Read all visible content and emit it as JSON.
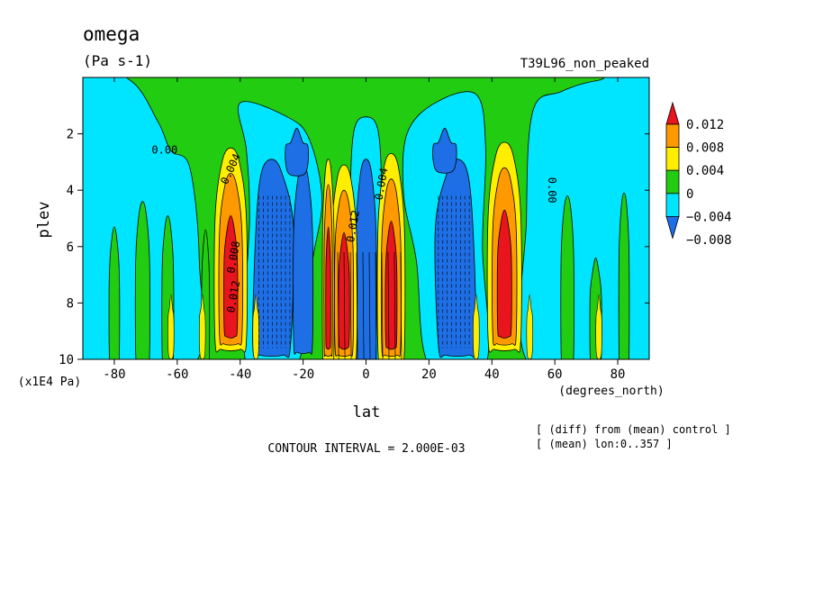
{
  "chart_data": {
    "type": "heatmap",
    "title": "omega",
    "units": "(Pa s-1)",
    "run_label": "T39L96_non_peaked",
    "xlabel": "lat",
    "x_units": "(degrees_north)",
    "ylabel": "plev",
    "y_units": "(x1E4 Pa)",
    "xlim": [
      -90,
      90
    ],
    "ylim": [
      10,
      0
    ],
    "x_ticks": [
      -80,
      -60,
      -40,
      -20,
      0,
      20,
      40,
      60,
      80
    ],
    "y_ticks": [
      2,
      4,
      6,
      8,
      10
    ],
    "contour_interval_text": "CONTOUR INTERVAL = 2.000E-03",
    "notes": [
      "[ (diff) from (mean) control ]",
      "[ (mean) lon:0..357 ]"
    ],
    "colorbar": {
      "levels": [
        -0.008,
        -0.004,
        0,
        0.004,
        0.008,
        0.012
      ],
      "labels": [
        "−0.008",
        "−0.004",
        "0",
        "0.004",
        "0.008",
        "0.012"
      ],
      "colors": [
        "#1e6fe6",
        "#00e5ff",
        "#22cc11",
        "#ffee00",
        "#ff9900",
        "#e8141e"
      ]
    },
    "contour_labels": [
      "0.00",
      "0.004",
      "0.008",
      "0.012",
      "0.012",
      "0.004",
      "0.00"
    ],
    "features": [
      {
        "lat": -43,
        "plev_top": 2.7,
        "plev_bottom": 9.6,
        "peak": 0.012,
        "sign": "positive"
      },
      {
        "lat": -30,
        "plev_top": 3.0,
        "plev_bottom": 9.8,
        "peak": -0.008,
        "sign": "negative"
      },
      {
        "lat": -7,
        "plev_top": 3.5,
        "plev_bottom": 9.9,
        "peak": 0.012,
        "sign": "positive"
      },
      {
        "lat": 0,
        "plev_top": 2.8,
        "plev_bottom": 10.0,
        "peak": -0.008,
        "sign": "negative"
      },
      {
        "lat": 8,
        "plev_top": 3.0,
        "plev_bottom": 9.9,
        "peak": 0.012,
        "sign": "positive"
      },
      {
        "lat": 30,
        "plev_top": 3.0,
        "plev_bottom": 9.8,
        "peak": -0.008,
        "sign": "negative"
      },
      {
        "lat": 44,
        "plev_top": 2.5,
        "plev_bottom": 9.6,
        "peak": 0.012,
        "sign": "positive"
      }
    ],
    "grid": false,
    "legend": "right"
  }
}
